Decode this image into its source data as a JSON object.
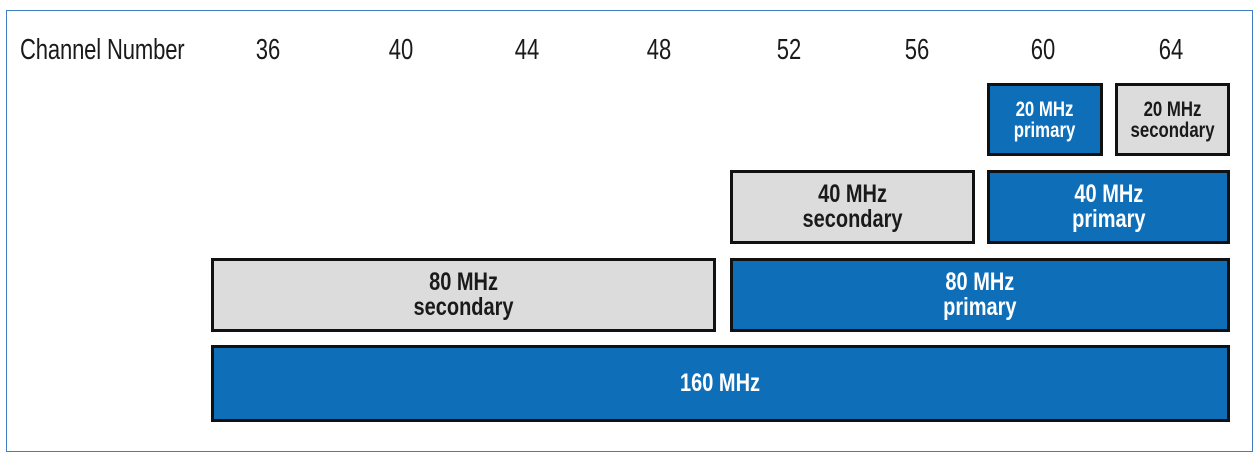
{
  "header_label": "Channel Number",
  "channels": [
    "36",
    "40",
    "44",
    "48",
    "52",
    "56",
    "60",
    "64"
  ],
  "blocks": {
    "ch20_primary": {
      "line1": "20 MHz",
      "line2": "primary"
    },
    "ch20_secondary": {
      "line1": "20 MHz",
      "line2": "secondary"
    },
    "ch40_secondary": {
      "line1": "40 MHz",
      "line2": "secondary"
    },
    "ch40_primary": {
      "line1": "40 MHz",
      "line2": "primary"
    },
    "ch80_secondary": {
      "line1": "80 MHz",
      "line2": "secondary"
    },
    "ch80_primary": {
      "line1": "80 MHz",
      "line2": "primary"
    },
    "ch160": {
      "line1": "160 MHz"
    }
  },
  "colors": {
    "primary": "#0e6eb8",
    "secondary": "#dcdcdc",
    "border": "#111111",
    "frame": "#3f7fbf"
  }
}
